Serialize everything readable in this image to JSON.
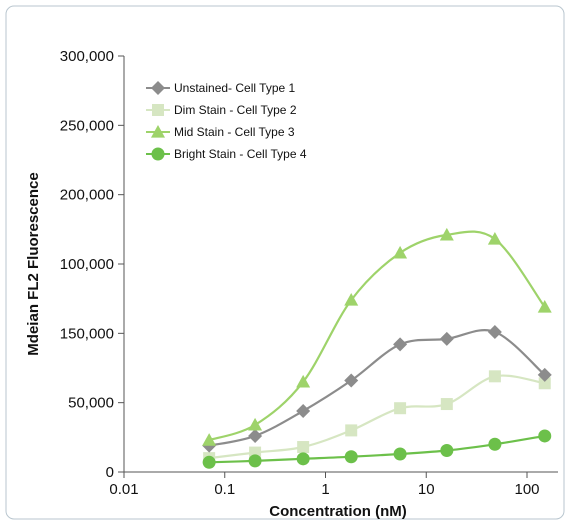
{
  "chart_data": {
    "type": "line",
    "title": "",
    "xlabel": "Concentration (nM)",
    "ylabel": "Mdeian FL2 Fluorescence",
    "x_scale": "log",
    "xlim": [
      0.01,
      200
    ],
    "ylim": [
      0,
      300000
    ],
    "x_ticks": [
      {
        "value": 0.01,
        "label": "0.01"
      },
      {
        "value": 0.1,
        "label": "0.1"
      },
      {
        "value": 1,
        "label": "1"
      },
      {
        "value": 10,
        "label": "10"
      },
      {
        "value": 100,
        "label": "100"
      }
    ],
    "y_ticks": [
      {
        "value": 0,
        "label": "0"
      },
      {
        "value": 50000,
        "label": "50,000"
      },
      {
        "value": 100000,
        "label": "100,000"
      },
      {
        "value": 150000,
        "label": "150,000"
      },
      {
        "value": 200000,
        "label": "200,000"
      },
      {
        "value": 250000,
        "label": "250,000"
      },
      {
        "value": 300000,
        "label": "300,000"
      }
    ],
    "y_tick_label_overrides": {
      "100000": "150,000",
      "150000": "100,000"
    },
    "x": [
      0.07,
      0.2,
      0.6,
      1.8,
      5.5,
      16,
      48,
      150
    ],
    "legend_position": "top-left",
    "grid": false,
    "series": [
      {
        "name": "Unstained- Cell Type 1",
        "marker": "diamond",
        "color": "#8c8c8c",
        "values": [
          19000,
          26000,
          44000,
          66000,
          92000,
          96000,
          101000,
          70000
        ]
      },
      {
        "name": "Dim Stain - Cell Type 2",
        "marker": "square",
        "color": "#d6e6c2",
        "values": [
          10000,
          14000,
          18000,
          30000,
          46000,
          49000,
          69000,
          64000
        ]
      },
      {
        "name": "Mid Stain - Cell Type 3",
        "marker": "triangle",
        "color": "#9ed36a",
        "values": [
          23000,
          34000,
          65000,
          124000,
          158000,
          171000,
          168000,
          119000
        ]
      },
      {
        "name": "Bright Stain - Cell Type 4",
        "marker": "circle",
        "color": "#6cc04a",
        "values": [
          7000,
          8000,
          9500,
          11000,
          13000,
          15500,
          20000,
          26000
        ]
      }
    ]
  }
}
